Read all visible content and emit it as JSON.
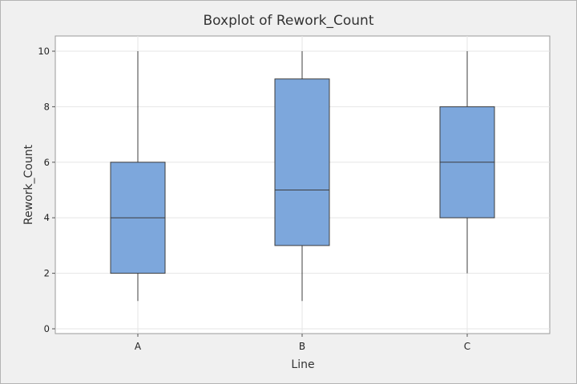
{
  "chart_data": {
    "type": "boxplot",
    "title": "Boxplot of Rework_Count",
    "xlabel": "Line",
    "ylabel": "Rework_Count",
    "categories": [
      "A",
      "B",
      "C"
    ],
    "boxes": [
      {
        "category": "A",
        "whisker_low": 1,
        "q1": 2,
        "median": 4,
        "q3": 6,
        "whisker_high": 10
      },
      {
        "category": "B",
        "whisker_low": 1,
        "q1": 3,
        "median": 5,
        "q3": 9,
        "whisker_high": 10
      },
      {
        "category": "C",
        "whisker_low": 2,
        "q1": 4,
        "median": 6,
        "q3": 8,
        "whisker_high": 10
      }
    ],
    "ylim": [
      0,
      10
    ],
    "yticks": [
      "0",
      "2",
      "4",
      "6",
      "8",
      "10"
    ],
    "grid": true,
    "colors": {
      "box_fill": "#7da7dc",
      "box_stroke": "#3c3c3c",
      "plot_bg": "#ffffff",
      "page_bg": "#f0f0f0",
      "grid": "#e6e6e6"
    }
  }
}
